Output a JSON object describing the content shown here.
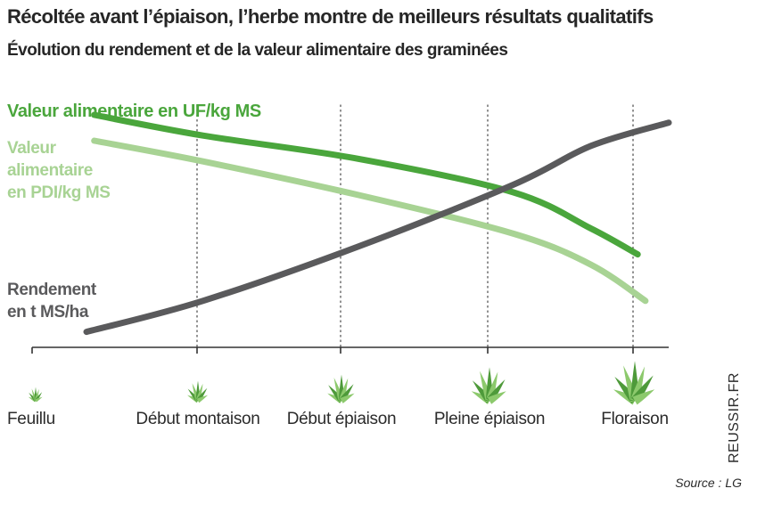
{
  "title": "Récoltée avant l’épiaison, l’herbe montre de meilleurs résultats qualitatifs",
  "subtitle": "Évolution du rendement et de la valeur alimentaire des graminées",
  "watermark": "REUSSIR.FR",
  "source": "Source : LG",
  "colors": {
    "uf": "#4aa63c",
    "pdi": "#a8d394",
    "rendement": "#5a5a5c",
    "axis": "#333333",
    "grass_dark": "#4e9a3a",
    "grass_light": "#8cc96c"
  },
  "chart_data": {
    "type": "line",
    "categories": [
      "Feuillu",
      "Début montaison",
      "Début épiaison",
      "Pleine épiaison",
      "Floraison"
    ],
    "x_range": [
      -0.1,
      4.0
    ],
    "y_range": [
      0,
      10
    ],
    "grid": "vertical dotted lines at each stage",
    "series": [
      {
        "key": "uf",
        "name": "Valeur alimentaire en UF/kg MS",
        "label_lines": [
          "Valeur alimentaire en UF/kg MS"
        ],
        "x": [
          0.3,
          1.0,
          2.0,
          3.0,
          3.5,
          3.8
        ],
        "y": [
          9.0,
          8.2,
          7.3,
          6.0,
          4.6,
          3.6
        ]
      },
      {
        "key": "pdi",
        "name": "Valeur alimentaire en PDI/kg MS",
        "label_lines": [
          "Valeur",
          "alimentaire",
          "en PDI/kg MS"
        ],
        "x": [
          0.3,
          1.0,
          2.0,
          3.0,
          3.5,
          3.85
        ],
        "y": [
          8.0,
          7.2,
          5.9,
          4.4,
          3.2,
          1.8
        ]
      },
      {
        "key": "rendement",
        "name": "Rendement en t MS/ha",
        "label_lines": [
          "Rendement",
          "en t MS/ha"
        ],
        "x": [
          0.25,
          1.0,
          2.0,
          3.0,
          3.5,
          4.0
        ],
        "y": [
          0.6,
          1.8,
          3.9,
          6.3,
          7.8,
          8.7
        ]
      }
    ],
    "stage_icons": [
      "grass-tuft-small-icon",
      "grass-tuft-small-icon",
      "grass-tuft-medium-icon",
      "grass-tuft-large-icon",
      "grass-tuft-xlarge-icon"
    ]
  }
}
